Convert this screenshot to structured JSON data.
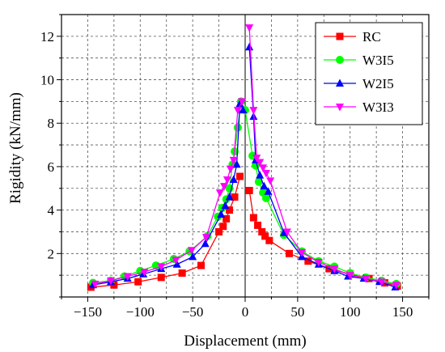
{
  "chart_data": {
    "type": "line",
    "xlabel": "Displacement (mm)",
    "ylabel": "Rigidity (kN/mm)",
    "xlim": [
      -175,
      175
    ],
    "ylim": [
      0,
      13
    ],
    "xticks": [
      -150,
      -100,
      -50,
      0,
      50,
      100,
      150
    ],
    "yticks": [
      2,
      4,
      6,
      8,
      10,
      12
    ],
    "grid": true,
    "legend_position": "top-right",
    "zero_line": true,
    "series": [
      {
        "name": "RC",
        "color": "#ff0000",
        "marker": "square",
        "points": [
          [
            -147,
            0.45
          ],
          [
            -125,
            0.55
          ],
          [
            -102,
            0.7
          ],
          [
            -80,
            0.9
          ],
          [
            -60,
            1.1
          ],
          [
            -42,
            1.45
          ],
          [
            -25,
            3.0
          ],
          [
            -21,
            3.25
          ],
          [
            -18,
            3.6
          ],
          [
            -15,
            4.0
          ],
          [
            -10,
            4.6
          ],
          [
            -5,
            5.55
          ],
          [
            4,
            4.9
          ],
          [
            8,
            3.65
          ],
          [
            12,
            3.3
          ],
          [
            16,
            3.0
          ],
          [
            19,
            2.8
          ],
          [
            23,
            2.6
          ],
          [
            42,
            2.0
          ],
          [
            60,
            1.65
          ],
          [
            80,
            1.3
          ],
          [
            100,
            1.05
          ],
          [
            118,
            0.85
          ],
          [
            133,
            0.65
          ],
          [
            145,
            0.5
          ]
        ]
      },
      {
        "name": "W3I5",
        "color": "#00ff00",
        "marker": "circle",
        "points": [
          [
            -145,
            0.65
          ],
          [
            -128,
            0.75
          ],
          [
            -115,
            0.95
          ],
          [
            -100,
            1.2
          ],
          [
            -85,
            1.45
          ],
          [
            -68,
            1.75
          ],
          [
            -53,
            2.1
          ],
          [
            -36,
            2.8
          ],
          [
            -26,
            3.7
          ],
          [
            -22,
            4.1
          ],
          [
            -18,
            4.5
          ],
          [
            -15,
            5.0
          ],
          [
            -12,
            6.1
          ],
          [
            -10,
            6.7
          ],
          [
            -7,
            7.8
          ],
          [
            -4,
            9.0
          ],
          [
            0,
            8.6
          ],
          [
            7,
            6.5
          ],
          [
            10,
            6.05
          ],
          [
            13,
            5.3
          ],
          [
            17,
            4.8
          ],
          [
            20,
            4.55
          ],
          [
            37,
            2.85
          ],
          [
            54,
            2.1
          ],
          [
            70,
            1.65
          ],
          [
            85,
            1.4
          ],
          [
            100,
            1.1
          ],
          [
            115,
            0.9
          ],
          [
            130,
            0.75
          ],
          [
            144,
            0.6
          ]
        ]
      },
      {
        "name": "W2I5",
        "color": "#0000ff",
        "marker": "triangle-up",
        "points": [
          [
            -145,
            0.55
          ],
          [
            -128,
            0.7
          ],
          [
            -112,
            0.85
          ],
          [
            -97,
            1.05
          ],
          [
            -80,
            1.3
          ],
          [
            -65,
            1.5
          ],
          [
            -50,
            1.85
          ],
          [
            -38,
            2.45
          ],
          [
            -23,
            3.8
          ],
          [
            -19,
            4.2
          ],
          [
            -15,
            4.6
          ],
          [
            -11,
            5.4
          ],
          [
            -8,
            6.1
          ],
          [
            -5,
            8.9
          ],
          [
            -2,
            8.6
          ],
          [
            4,
            11.5
          ],
          [
            8,
            8.3
          ],
          [
            10,
            6.3
          ],
          [
            14,
            5.6
          ],
          [
            18,
            5.1
          ],
          [
            22,
            4.85
          ],
          [
            37,
            2.95
          ],
          [
            54,
            1.85
          ],
          [
            70,
            1.5
          ],
          [
            85,
            1.2
          ],
          [
            98,
            0.95
          ],
          [
            113,
            0.85
          ],
          [
            128,
            0.7
          ],
          [
            143,
            0.45
          ]
        ]
      },
      {
        "name": "W3I3",
        "color": "#ff00ff",
        "marker": "triangle-down",
        "points": [
          [
            -143,
            0.6
          ],
          [
            -128,
            0.75
          ],
          [
            -112,
            0.95
          ],
          [
            -96,
            1.15
          ],
          [
            -80,
            1.4
          ],
          [
            -66,
            1.7
          ],
          [
            -51,
            2.15
          ],
          [
            -37,
            2.75
          ],
          [
            -24,
            4.8
          ],
          [
            -20,
            5.1
          ],
          [
            -17,
            5.4
          ],
          [
            -14,
            5.9
          ],
          [
            -11,
            6.3
          ],
          [
            -7,
            8.6
          ],
          [
            -3,
            9.0
          ],
          [
            4,
            12.4
          ],
          [
            8,
            8.6
          ],
          [
            11,
            6.4
          ],
          [
            14,
            6.2
          ],
          [
            17,
            5.95
          ],
          [
            20,
            5.7
          ],
          [
            24,
            5.35
          ],
          [
            40,
            3.0
          ],
          [
            54,
            2.05
          ],
          [
            70,
            1.6
          ],
          [
            85,
            1.3
          ],
          [
            100,
            1.0
          ],
          [
            115,
            0.85
          ],
          [
            130,
            0.7
          ],
          [
            144,
            0.55
          ]
        ]
      }
    ]
  }
}
